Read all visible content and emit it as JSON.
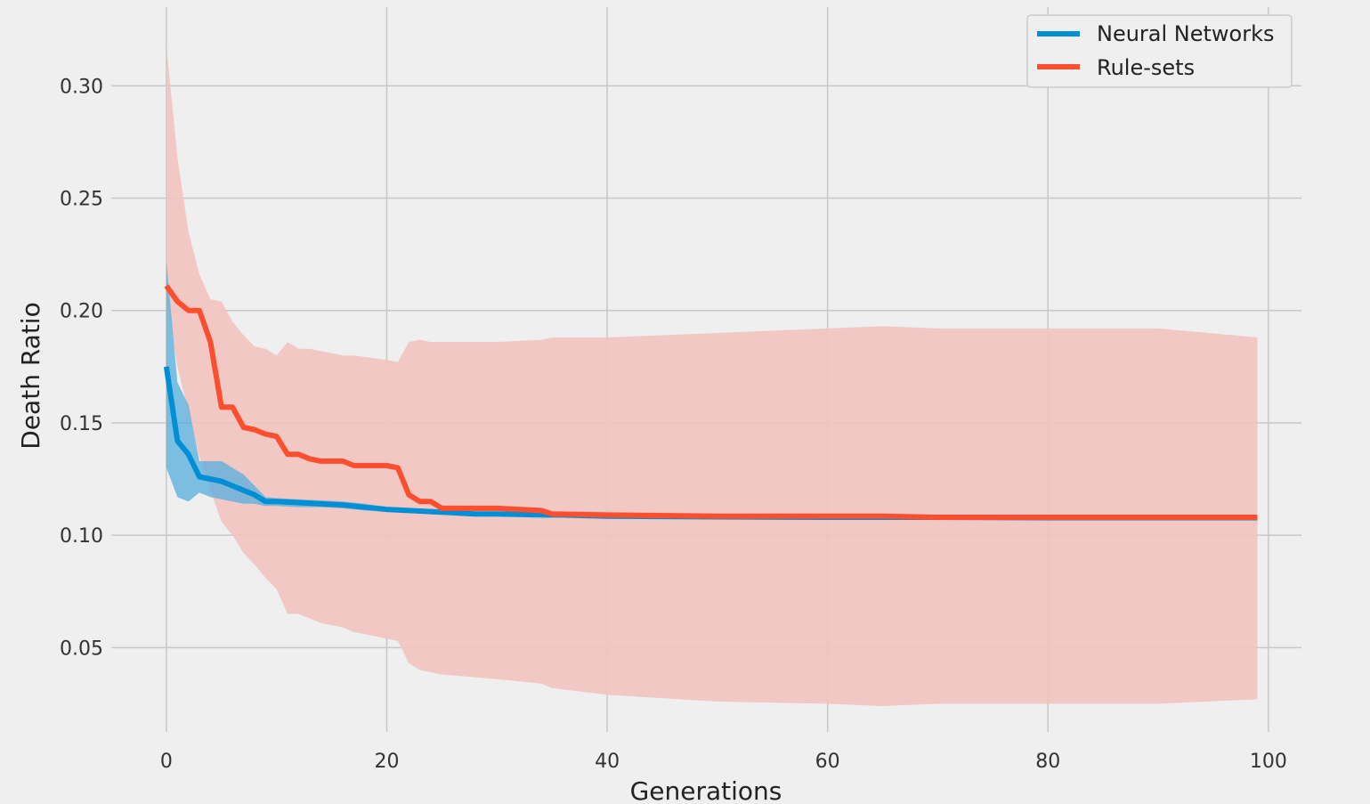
{
  "chart_data": {
    "type": "line",
    "title": "",
    "xlabel": "Generations",
    "ylabel": "Death Ratio",
    "xlim": [
      -5,
      103
    ],
    "ylim": [
      0.0125,
      0.335
    ],
    "xticks": [
      0,
      20,
      40,
      60,
      80,
      100
    ],
    "xtick_labels": [
      "0",
      "20",
      "40",
      "60",
      "80",
      "100"
    ],
    "yticks": [
      0.05,
      0.1,
      0.15,
      0.2,
      0.25,
      0.3
    ],
    "ytick_labels": [
      "0.05",
      "0.10",
      "0.15",
      "0.20",
      "0.25",
      "0.30"
    ],
    "grid": true,
    "legend_position": "top-right",
    "series": [
      {
        "name": "Neural Networks",
        "color": "#008fd5",
        "band_color": "#56aede",
        "x": [
          0,
          1,
          2,
          3,
          4,
          5,
          6,
          7,
          8,
          9,
          10,
          12,
          14,
          16,
          18,
          20,
          22,
          24,
          26,
          28,
          30,
          32,
          34,
          36,
          40,
          50,
          60,
          70,
          80,
          90,
          99
        ],
        "mean": [
          0.175,
          0.142,
          0.136,
          0.126,
          0.125,
          0.124,
          0.122,
          0.12,
          0.118,
          0.115,
          0.115,
          0.1145,
          0.114,
          0.1135,
          0.1125,
          0.1115,
          0.111,
          0.1105,
          0.11,
          0.1095,
          0.1095,
          0.1093,
          0.109,
          0.109,
          0.1085,
          0.1082,
          0.108,
          0.108,
          0.1078,
          0.1078,
          0.1078
        ],
        "upper": [
          0.222,
          0.168,
          0.158,
          0.133,
          0.133,
          0.133,
          0.13,
          0.127,
          0.122,
          0.117,
          0.1165,
          0.116,
          0.1155,
          0.115,
          0.114,
          0.1125,
          0.1115,
          0.111,
          0.1105,
          0.11,
          0.1098,
          0.1096,
          0.1093,
          0.1092,
          0.1088,
          0.1085,
          0.1083,
          0.1082,
          0.108,
          0.108,
          0.108
        ],
        "lower": [
          0.13,
          0.117,
          0.115,
          0.119,
          0.117,
          0.116,
          0.115,
          0.114,
          0.114,
          0.113,
          0.113,
          0.1125,
          0.1125,
          0.112,
          0.111,
          0.1105,
          0.11,
          0.1098,
          0.1095,
          0.109,
          0.109,
          0.1088,
          0.1086,
          0.1086,
          0.1082,
          0.1079,
          0.1077,
          0.1077,
          0.1076,
          0.1076,
          0.1076
        ]
      },
      {
        "name": "Rule-sets",
        "color": "#fc4f30",
        "band_color": "#f0c5c0",
        "x": [
          0,
          1,
          2,
          3,
          4,
          5,
          6,
          7,
          8,
          9,
          10,
          11,
          12,
          13,
          14,
          16,
          17,
          20,
          21,
          22,
          23,
          24,
          25,
          30,
          34,
          35,
          40,
          50,
          60,
          65,
          70,
          80,
          90,
          99
        ],
        "mean": [
          0.211,
          0.204,
          0.2,
          0.2,
          0.186,
          0.157,
          0.157,
          0.148,
          0.147,
          0.145,
          0.144,
          0.136,
          0.136,
          0.134,
          0.133,
          0.133,
          0.131,
          0.131,
          0.13,
          0.118,
          0.115,
          0.115,
          0.112,
          0.112,
          0.111,
          0.1095,
          0.109,
          0.1085,
          0.1085,
          0.1085,
          0.108,
          0.108,
          0.108,
          0.108
        ],
        "upper": [
          0.318,
          0.268,
          0.235,
          0.216,
          0.205,
          0.204,
          0.195,
          0.189,
          0.184,
          0.183,
          0.18,
          0.186,
          0.183,
          0.183,
          0.182,
          0.18,
          0.18,
          0.178,
          0.177,
          0.186,
          0.187,
          0.186,
          0.186,
          0.186,
          0.187,
          0.188,
          0.188,
          0.19,
          0.192,
          0.193,
          0.192,
          0.192,
          0.192,
          0.188
        ],
        "lower": [
          0.206,
          0.175,
          0.155,
          0.135,
          0.12,
          0.106,
          0.1,
          0.092,
          0.087,
          0.081,
          0.076,
          0.065,
          0.065,
          0.063,
          0.061,
          0.059,
          0.057,
          0.054,
          0.053,
          0.043,
          0.04,
          0.039,
          0.038,
          0.036,
          0.034,
          0.032,
          0.029,
          0.026,
          0.025,
          0.024,
          0.025,
          0.025,
          0.025,
          0.027
        ]
      }
    ]
  }
}
